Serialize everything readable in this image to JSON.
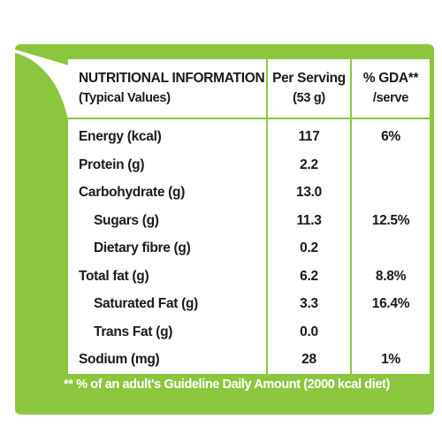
{
  "header": {
    "title": "NUTRITIONAL INFORMATION",
    "subtitle": "(Typical Values)",
    "per_serving_line1": "Per Serving",
    "per_serving_line2": "(53 g)",
    "gda_line1": "% GDA**",
    "gda_line2": "/serve"
  },
  "rows": [
    {
      "label": "Energy (kcal)",
      "value": "117",
      "gda": "6%"
    },
    {
      "label": "Protein (g)",
      "value": "2.2",
      "gda": ""
    },
    {
      "label": "Carbohydrate (g)",
      "value": "13.0",
      "gda": ""
    },
    {
      "label": "Sugars (g)",
      "value": "11.3",
      "gda": "12.5%"
    },
    {
      "label": "Dietary fibre (g)",
      "value": "0.2",
      "gda": ""
    },
    {
      "label": "Total fat (g)",
      "value": "6.2",
      "gda": "8.8%"
    },
    {
      "label": "Saturated Fat (g)",
      "value": "3.3",
      "gda": "16.4%"
    },
    {
      "label": "Trans Fat (g)",
      "value": "0.0",
      "gda": ""
    },
    {
      "label": "Sodium (mg)",
      "value": "28",
      "gda": "1%"
    }
  ],
  "footnote": "** % of an adult's Guideline Daily Amount (2000 kcal diet)",
  "colors": {
    "accent_green": "#8cc63f",
    "text": "#1a1a1a",
    "background": "#ffffff"
  }
}
